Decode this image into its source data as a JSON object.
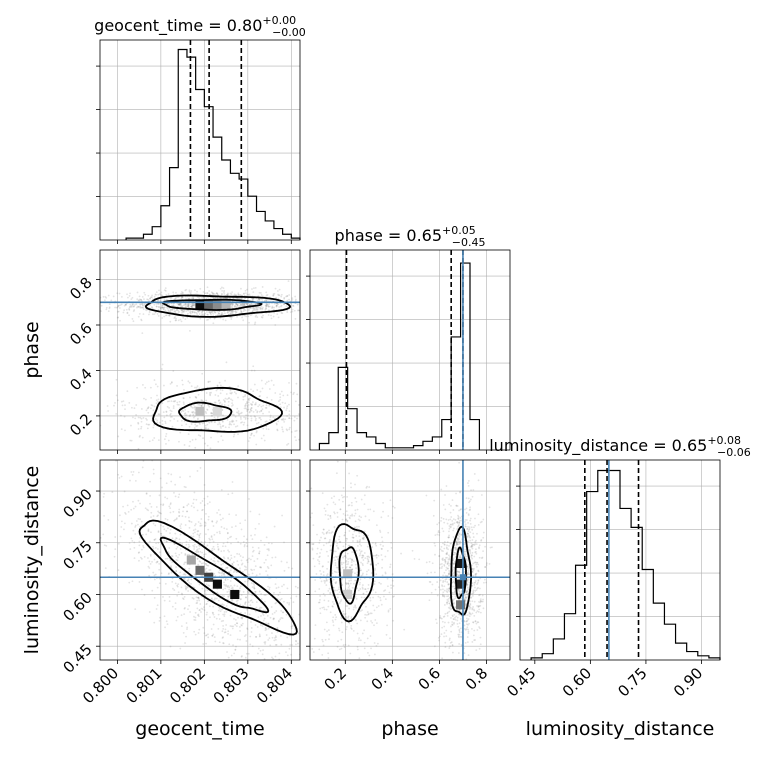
{
  "chart_data": {
    "type": "corner",
    "params": [
      "geocent_time",
      "phase",
      "luminosity_distance"
    ],
    "truths": {
      "phase": 0.7,
      "luminosity_distance": 0.65
    },
    "colors": {
      "truth": "#4682b4",
      "line": "#000000",
      "grid": "#b0b0b0",
      "scatter": "#808080"
    },
    "diagonal": [
      {
        "param": "geocent_time",
        "title_main": "geocent_time = 0.80",
        "title_sup": "+0.00",
        "title_sub": "−0.00",
        "xlim": [
          0.7996,
          0.8042
        ],
        "xticks": [
          0.8,
          0.801,
          0.802,
          0.803,
          0.804
        ],
        "xtick_labels": [
          "0.800",
          "0.801",
          "0.802",
          "0.803",
          "0.804"
        ],
        "quantiles": [
          0.80168,
          0.80211,
          0.80285
        ],
        "bin_edges": [
          0.8002,
          0.8006,
          0.8008,
          0.801,
          0.8012,
          0.8014,
          0.8016,
          0.8018,
          0.802,
          0.8022,
          0.8024,
          0.8026,
          0.8028,
          0.803,
          0.8032,
          0.8034,
          0.8036,
          0.8038,
          0.804,
          0.8042
        ],
        "counts": [
          1,
          3,
          7,
          18,
          38,
          100,
          96,
          79,
          70,
          54,
          42,
          35,
          32,
          23,
          15,
          10,
          6,
          3,
          1
        ],
        "ymax": 105
      },
      {
        "param": "phase",
        "title_main": "phase = 0.65",
        "title_sup": "+0.05",
        "title_sub": "−0.45",
        "xlim": [
          0.05,
          0.9
        ],
        "xticks": [
          0.2,
          0.4,
          0.6,
          0.8
        ],
        "xtick_labels": [
          "0.2",
          "0.4",
          "0.6",
          "0.8"
        ],
        "quantiles": [
          0.205,
          0.65,
          0.7
        ],
        "bin_edges": [
          0.09,
          0.13,
          0.17,
          0.21,
          0.25,
          0.29,
          0.33,
          0.37,
          0.41,
          0.45,
          0.49,
          0.53,
          0.57,
          0.61,
          0.65,
          0.69,
          0.73,
          0.77
        ],
        "counts": [
          3,
          8,
          38,
          19,
          8,
          6,
          3,
          1,
          1,
          1,
          2,
          4,
          6,
          14,
          52,
          86,
          14
        ],
        "ymax": 92
      },
      {
        "param": "luminosity_distance",
        "title_main": "luminosity_distance = 0.65",
        "title_sup": "+0.08",
        "title_sub": "−0.06",
        "xlim": [
          0.41,
          0.95
        ],
        "xticks": [
          0.45,
          0.6,
          0.75,
          0.9
        ],
        "xtick_labels": [
          "0.45",
          "0.60",
          "0.75",
          "0.90"
        ],
        "quantiles": [
          0.585,
          0.645,
          0.73
        ],
        "bin_edges": [
          0.44,
          0.47,
          0.5,
          0.53,
          0.56,
          0.59,
          0.62,
          0.65,
          0.68,
          0.71,
          0.74,
          0.77,
          0.8,
          0.83,
          0.86,
          0.89,
          0.92,
          0.95
        ],
        "counts": [
          1,
          3,
          10,
          22,
          45,
          80,
          90,
          90,
          72,
          63,
          43,
          27,
          17,
          8,
          4,
          2,
          1
        ],
        "ymax": 95
      }
    ],
    "offdiag_ranges": {
      "phase_y": {
        "ylim": [
          0.05,
          0.93
        ],
        "yticks": [
          0.2,
          0.4,
          0.6,
          0.8
        ],
        "ytick_labels": [
          "0.2",
          "0.4",
          "0.6",
          "0.8"
        ]
      },
      "luminosity_distance_y": {
        "ylim": [
          0.41,
          0.99
        ],
        "yticks": [
          0.45,
          0.6,
          0.75,
          0.9
        ],
        "ytick_labels": [
          "0.45",
          "0.60",
          "0.75",
          "0.90"
        ]
      }
    },
    "axis_labels": {
      "x": [
        "geocent_time",
        "phase",
        "luminosity_distance"
      ],
      "y": [
        "phase",
        "luminosity_distance"
      ]
    },
    "grid": true,
    "point_clouds": [
      {
        "panel": "phase_vs_geocent_time",
        "x": 0.8022,
        "y": 0.69,
        "sx": 0.0007,
        "sy": 0.02,
        "n": 1400
      },
      {
        "panel": "phase_vs_geocent_time",
        "x": 0.8024,
        "y": 0.22,
        "sx": 0.0008,
        "sy": 0.05,
        "n": 700
      },
      {
        "panel": "luminosity_distance_vs_geocent_time",
        "x": 0.8022,
        "y": 0.65,
        "sx": 0.0008,
        "sy": 0.07,
        "n": 1400,
        "slope": -80
      },
      {
        "panel": "luminosity_distance_vs_phase",
        "x": 0.22,
        "y": 0.66,
        "sx": 0.06,
        "sy": 0.08,
        "n": 700
      },
      {
        "panel": "luminosity_distance_vs_phase",
        "x": 0.69,
        "y": 0.66,
        "sx": 0.03,
        "sy": 0.07,
        "n": 1100
      }
    ],
    "contours": [
      {
        "panel": "phase_vs_geocent_time",
        "x": 0.80215,
        "y": 0.69,
        "rx": 0.0011,
        "ry": 0.022,
        "level": "inner"
      },
      {
        "panel": "phase_vs_geocent_time",
        "x": 0.80225,
        "y": 0.685,
        "rx": 0.00165,
        "ry": 0.045,
        "level": "outer"
      },
      {
        "panel": "phase_vs_geocent_time",
        "x": 0.802,
        "y": 0.215,
        "rx": 0.0006,
        "ry": 0.04,
        "level": "inner"
      },
      {
        "panel": "phase_vs_geocent_time",
        "x": 0.80225,
        "y": 0.22,
        "rx": 0.00145,
        "ry": 0.095,
        "level": "outer"
      },
      {
        "panel": "luminosity_distance_vs_geocent_time",
        "x": 0.8022,
        "y": 0.65,
        "rx": 0.0012,
        "ry": 0.04,
        "level": "inner",
        "slope": -80
      },
      {
        "panel": "luminosity_distance_vs_geocent_time",
        "x": 0.80225,
        "y": 0.65,
        "rx": 0.0018,
        "ry": 0.07,
        "level": "outer",
        "slope": -80
      },
      {
        "panel": "luminosity_distance_vs_phase",
        "x": 0.215,
        "y": 0.66,
        "rx": 0.04,
        "ry": 0.08,
        "level": "inner"
      },
      {
        "panel": "luminosity_distance_vs_phase",
        "x": 0.225,
        "y": 0.67,
        "rx": 0.09,
        "ry": 0.135,
        "level": "outer"
      },
      {
        "panel": "luminosity_distance_vs_phase",
        "x": 0.69,
        "y": 0.66,
        "rx": 0.022,
        "ry": 0.07,
        "level": "inner"
      },
      {
        "panel": "luminosity_distance_vs_phase",
        "x": 0.69,
        "y": 0.66,
        "rx": 0.042,
        "ry": 0.125,
        "level": "outer"
      }
    ],
    "density_cells": [
      {
        "panel": "phase_vs_geocent_time",
        "x": 0.8019,
        "y": 0.69,
        "shade": 0.95
      },
      {
        "panel": "phase_vs_geocent_time",
        "x": 0.8021,
        "y": 0.69,
        "shade": 0.6
      },
      {
        "panel": "phase_vs_geocent_time",
        "x": 0.8023,
        "y": 0.69,
        "shade": 0.45
      },
      {
        "panel": "phase_vs_geocent_time",
        "x": 0.8025,
        "y": 0.69,
        "shade": 0.3
      },
      {
        "panel": "phase_vs_geocent_time",
        "x": 0.8019,
        "y": 0.22,
        "shade": 0.25
      },
      {
        "panel": "phase_vs_geocent_time",
        "x": 0.8023,
        "y": 0.22,
        "shade": 0.15
      },
      {
        "panel": "luminosity_distance_vs_geocent_time",
        "x": 0.8019,
        "y": 0.67,
        "shade": 0.6
      },
      {
        "panel": "luminosity_distance_vs_geocent_time",
        "x": 0.8021,
        "y": 0.65,
        "shade": 0.75
      },
      {
        "panel": "luminosity_distance_vs_geocent_time",
        "x": 0.8023,
        "y": 0.63,
        "shade": 0.95
      },
      {
        "panel": "luminosity_distance_vs_geocent_time",
        "x": 0.8027,
        "y": 0.6,
        "shade": 0.95
      },
      {
        "panel": "luminosity_distance_vs_geocent_time",
        "x": 0.8017,
        "y": 0.7,
        "shade": 0.35
      },
      {
        "panel": "luminosity_distance_vs_phase",
        "x": 0.69,
        "y": 0.69,
        "shade": 0.9
      },
      {
        "panel": "luminosity_distance_vs_phase",
        "x": 0.69,
        "y": 0.63,
        "shade": 0.85
      },
      {
        "panel": "luminosity_distance_vs_phase",
        "x": 0.69,
        "y": 0.57,
        "shade": 0.55
      },
      {
        "panel": "luminosity_distance_vs_phase",
        "x": 0.21,
        "y": 0.66,
        "shade": 0.25
      },
      {
        "panel": "luminosity_distance_vs_phase",
        "x": 0.21,
        "y": 0.6,
        "shade": 0.2
      }
    ]
  }
}
